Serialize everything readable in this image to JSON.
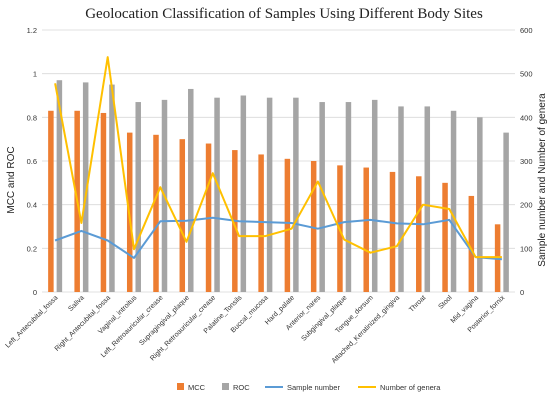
{
  "chart_data": {
    "type": "bar",
    "title": "Geolocation Classification of Samples Using Different Body Sites",
    "ylabel_left": "MCC and ROC",
    "ylabel_right": "Sample number and Number of genera",
    "ylim_left": [
      0,
      1.2
    ],
    "ylim_right": [
      0,
      600
    ],
    "yticks_left": [
      "0",
      "0.2",
      "0.4",
      "0.6",
      "0.8",
      "1",
      "1.2"
    ],
    "yticks_right": [
      "0",
      "100",
      "200",
      "300",
      "400",
      "500",
      "600"
    ],
    "grid": true,
    "legend_position": "bottom",
    "categories": [
      "Left_Antecubital_fossa",
      "Saliva",
      "Right_Antecubital_fossa",
      "Vaginal_introitus",
      "Left_Retroauricular_crease",
      "Supragingival_plaque",
      "Right_Retroauricular_crease",
      "Palatine_Tonsils",
      "Buccal_mucosa",
      "Hard_palate",
      "Anterior_nares",
      "Subgingival_plaque",
      "Tongue_dorsum",
      "Attached_Keratinized_gingiva",
      "Throat",
      "Stool",
      "Mid_vagina",
      "Posterior_fornix"
    ],
    "series": [
      {
        "name": "MCC",
        "kind": "bar",
        "axis": "left",
        "color": "#ED7D31",
        "values": [
          0.83,
          0.83,
          0.82,
          0.73,
          0.72,
          0.7,
          0.68,
          0.65,
          0.63,
          0.61,
          0.6,
          0.58,
          0.57,
          0.55,
          0.53,
          0.5,
          0.44,
          0.31
        ]
      },
      {
        "name": "ROC",
        "kind": "bar",
        "axis": "left",
        "color": "#A5A5A5",
        "values": [
          0.97,
          0.96,
          0.95,
          0.87,
          0.88,
          0.93,
          0.89,
          0.9,
          0.89,
          0.89,
          0.87,
          0.87,
          0.88,
          0.85,
          0.85,
          0.83,
          0.8,
          0.73
        ]
      },
      {
        "name": "Sample number",
        "kind": "line",
        "axis": "right",
        "color": "#5B9BD5",
        "values": [
          118,
          140,
          118,
          78,
          162,
          163,
          170,
          162,
          160,
          158,
          145,
          160,
          165,
          157,
          155,
          165,
          80,
          75
        ]
      },
      {
        "name": "Number of genera",
        "kind": "line",
        "axis": "right",
        "color": "#FFC000",
        "values": [
          478,
          158,
          538,
          98,
          240,
          115,
          272,
          128,
          128,
          145,
          253,
          120,
          90,
          105,
          200,
          190,
          80,
          80
        ]
      }
    ]
  }
}
